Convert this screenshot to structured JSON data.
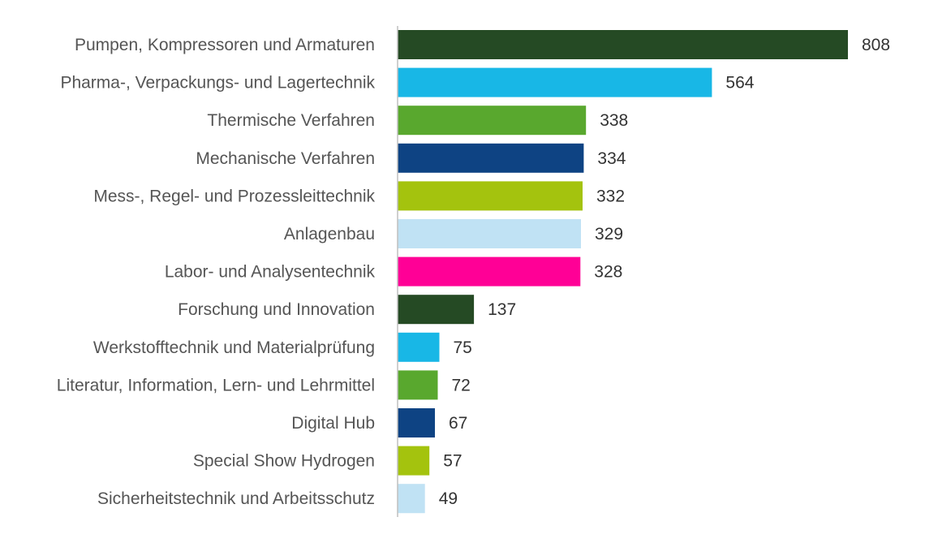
{
  "chart_data": {
    "type": "bar",
    "orientation": "horizontal",
    "title": "",
    "xlabel": "",
    "ylabel": "",
    "grid": false,
    "xlim": [
      0,
      808
    ],
    "categories": [
      "Pumpen, Kompressoren und Armaturen",
      "Pharma-, Verpackungs- und Lagertechnik",
      "Thermische Verfahren",
      "Mechanische Verfahren",
      "Mess-, Regel- und Prozessleittechnik",
      "Anlagenbau",
      "Labor- und Analysentechnik",
      "Forschung und Innovation",
      "Werkstofftechnik und Materialprüfung",
      "Literatur, Information, Lern- und Lehrmittel",
      "Digital Hub",
      "Special Show Hydrogen",
      "Sicherheitstechnik und Arbeitsschutz"
    ],
    "values": [
      808,
      564,
      338,
      334,
      332,
      329,
      328,
      137,
      75,
      72,
      67,
      57,
      49
    ],
    "colors": [
      "#254A24",
      "#18B7E6",
      "#59A82E",
      "#0E4383",
      "#A4C30E",
      "#C0E2F4",
      "#FF0096",
      "#254A24",
      "#18B7E6",
      "#59A82E",
      "#0E4383",
      "#A4C30E",
      "#C0E2F4"
    ],
    "axis_color": "#BFBFBF"
  }
}
